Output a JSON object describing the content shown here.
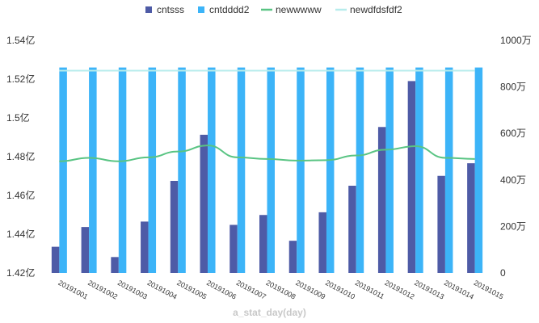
{
  "chart_data": {
    "type": "bar",
    "xlabel": "a_stat_day(day)",
    "categories": [
      "20191001",
      "20191002",
      "20191003",
      "20191004",
      "20191005",
      "20191006",
      "20191007",
      "20191008",
      "20191009",
      "20191010",
      "20191011",
      "20191012",
      "20191013",
      "20191014",
      "20191015"
    ],
    "y_left": {
      "min": 1.42,
      "max": 1.54,
      "ticks": [
        1.42,
        1.44,
        1.46,
        1.48,
        1.5,
        1.52,
        1.54
      ],
      "tick_labels": [
        "1.42亿",
        "1.44亿",
        "1.46亿",
        "1.48亿",
        "1.5亿",
        "1.52亿",
        "1.54亿"
      ]
    },
    "y_right": {
      "min": 0,
      "max": 1000,
      "ticks": [
        0,
        200,
        400,
        600,
        800,
        1000
      ],
      "tick_labels": [
        "0",
        "200万",
        "400万",
        "600万",
        "800万",
        "1000万"
      ]
    },
    "series": [
      {
        "name": "cntsss",
        "kind": "bar",
        "axis": "left",
        "color": "#4e5ba6",
        "values": [
          1.4335,
          1.4437,
          1.4282,
          1.4465,
          1.4675,
          1.4913,
          1.4448,
          1.4499,
          1.4366,
          1.4513,
          1.465,
          1.4953,
          1.519,
          1.4701,
          1.4766
        ]
      },
      {
        "name": "cntdddd2",
        "kind": "bar",
        "axis": "left",
        "color": "#3cb4f8",
        "values": [
          1.526,
          1.526,
          1.526,
          1.526,
          1.526,
          1.526,
          1.526,
          1.526,
          1.526,
          1.526,
          1.526,
          1.526,
          1.526,
          1.526,
          1.526
        ]
      },
      {
        "name": "newwwww",
        "kind": "line",
        "axis": "right",
        "color": "#59c483",
        "values": [
          480,
          495,
          480,
          497,
          522,
          548,
          497,
          490,
          483,
          485,
          505,
          530,
          545,
          495,
          490
        ]
      },
      {
        "name": "newdfdsfdf2",
        "kind": "line",
        "axis": "right",
        "color": "#b7ecec",
        "values": [
          870,
          870,
          870,
          870,
          870,
          870,
          870,
          870,
          870,
          870,
          870,
          870,
          870,
          870,
          870
        ]
      }
    ],
    "legend_position": "top",
    "grid": false
  }
}
